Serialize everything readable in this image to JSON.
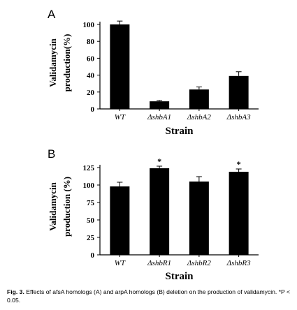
{
  "chart_data": [
    {
      "type": "bar",
      "panel_label": "A",
      "categories": [
        "WT",
        "ΔshbA1",
        "ΔshbA2",
        "ΔshbA3"
      ],
      "values": [
        100,
        9,
        23,
        39
      ],
      "errors": [
        4,
        1,
        3,
        5
      ],
      "annotations": [
        "",
        "",
        "",
        ""
      ],
      "ylabel_line1": "Validamycin",
      "ylabel_line2": "production(%)",
      "xlabel": "Strain",
      "yticks": [
        "0",
        "20",
        "40",
        "60",
        "80",
        "100"
      ],
      "ylim": [
        0,
        100
      ],
      "grid": false,
      "bar_color": "#000000"
    },
    {
      "type": "bar",
      "panel_label": "B",
      "categories": [
        "WT",
        "ΔshbR1",
        "ΔshbR2",
        "ΔshbR3"
      ],
      "values": [
        98,
        124,
        105,
        119
      ],
      "errors": [
        6,
        3,
        7,
        4
      ],
      "annotations": [
        "",
        "*",
        "",
        "*"
      ],
      "ylabel_line1": "Validamycin",
      "ylabel_line2": "production (%)",
      "xlabel": "Strain",
      "yticks": [
        "0",
        "25",
        "50",
        "75",
        "100",
        "125"
      ],
      "ylim": [
        0,
        125
      ],
      "grid": false,
      "bar_color": "#000000"
    }
  ],
  "caption": {
    "label": "Fig. 3.",
    "text": "Effects of afsA homologs (A) and arpA homologs (B) deletion on the production of validamycin. *P < 0.05."
  }
}
